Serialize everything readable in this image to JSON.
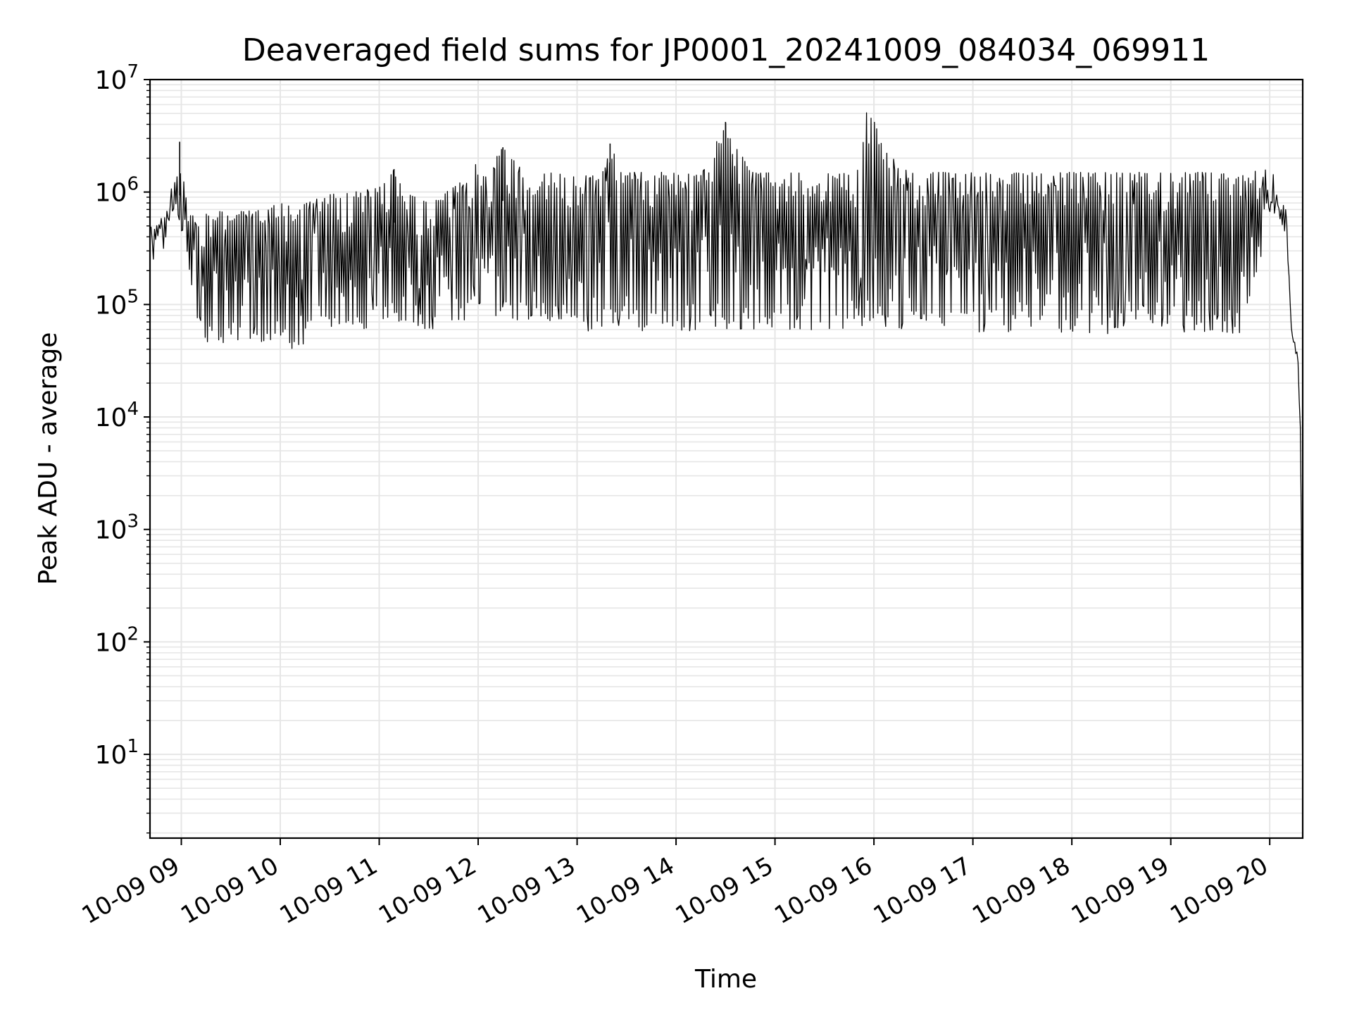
{
  "chart_data": {
    "type": "line",
    "title": "Deaveraged field sums for JP0001_20241009_084034_069911",
    "xlabel": "Time",
    "ylabel": "Peak ADU - average",
    "y_scale": "log",
    "ylim": [
      1.8,
      10000000
    ],
    "xlim": [
      "2024-10-09 08:41",
      "2024-10-09 20:20"
    ],
    "grid": true,
    "legend": "none",
    "line_color": "#000000",
    "grid_color": "#e6e6e6",
    "x_ticks": [
      "10-09 09",
      "10-09 10",
      "10-09 11",
      "10-09 12",
      "10-09 13",
      "10-09 14",
      "10-09 15",
      "10-09 16",
      "10-09 17",
      "10-09 18",
      "10-09 19",
      "10-09 20"
    ],
    "y_ticks": [
      {
        "value": 10,
        "base": "10",
        "exp": "1"
      },
      {
        "value": 100,
        "base": "10",
        "exp": "2"
      },
      {
        "value": 1000,
        "base": "10",
        "exp": "3"
      },
      {
        "value": 10000,
        "base": "10",
        "exp": "4"
      },
      {
        "value": 100000,
        "base": "10",
        "exp": "5"
      },
      {
        "value": 1000000,
        "base": "10",
        "exp": "6"
      },
      {
        "value": 10000000,
        "base": "10",
        "exp": "7"
      }
    ],
    "series": [
      {
        "x": [
          "2024-10-09 08:41",
          "2024-10-09 08:46",
          "2024-10-09 08:51",
          "2024-10-09 08:56",
          "2024-10-09 08:59",
          "2024-10-09 09:02",
          "2024-10-09 09:05",
          "2024-10-09 09:08",
          "2024-10-09 09:10",
          "2024-10-09 09:15",
          "2024-10-09 09:30",
          "2024-10-09 09:45",
          "2024-10-09 10:00",
          "2024-10-09 10:12",
          "2024-10-09 10:15",
          "2024-10-09 10:30",
          "2024-10-09 10:45",
          "2024-10-09 11:00",
          "2024-10-09 11:09",
          "2024-10-09 11:15",
          "2024-10-09 11:30",
          "2024-10-09 11:45",
          "2024-10-09 11:52",
          "2024-10-09 12:00",
          "2024-10-09 12:05",
          "2024-10-09 12:15",
          "2024-10-09 12:30",
          "2024-10-09 12:45",
          "2024-10-09 13:00",
          "2024-10-09 13:15",
          "2024-10-09 13:20",
          "2024-10-09 13:30",
          "2024-10-09 13:45",
          "2024-10-09 13:55",
          "2024-10-09 14:00",
          "2024-10-09 14:15",
          "2024-10-09 14:30",
          "2024-10-09 14:45",
          "2024-10-09 15:00",
          "2024-10-09 15:15",
          "2024-10-09 15:30",
          "2024-10-09 15:45",
          "2024-10-09 15:52",
          "2024-10-09 15:55",
          "2024-10-09 16:00",
          "2024-10-09 16:15",
          "2024-10-09 16:30",
          "2024-10-09 16:45",
          "2024-10-09 17:00",
          "2024-10-09 17:15",
          "2024-10-09 17:30",
          "2024-10-09 17:45",
          "2024-10-09 18:00",
          "2024-10-09 18:15",
          "2024-10-09 18:30",
          "2024-10-09 18:45",
          "2024-10-09 19:00",
          "2024-10-09 19:15",
          "2024-10-09 19:30",
          "2024-10-09 19:45",
          "2024-10-09 20:00",
          "2024-10-09 20:05",
          "2024-10-09 20:10",
          "2024-10-09 20:13",
          "2024-10-09 20:15",
          "2024-10-09 20:17",
          "2024-10-09 20:19",
          "2024-10-09 20:20"
        ],
        "upper": [
          600000,
          500000,
          800000,
          1300000,
          2800000,
          1200000,
          700000,
          650000,
          600000,
          650000,
          700000,
          700000,
          800000,
          700000,
          800000,
          950000,
          1000000,
          1100000,
          1600000,
          1000000,
          800000,
          1100000,
          1300000,
          1900000,
          1500000,
          2500000,
          1400000,
          1500000,
          1400000,
          1400000,
          2700000,
          1500000,
          1500000,
          1500000,
          1500000,
          1400000,
          4200000,
          1500000,
          1500000,
          1500000,
          1500000,
          1500000,
          1700000,
          5600000,
          4300000,
          1600000,
          1500000,
          1500000,
          1500000,
          1500000,
          1500000,
          1500000,
          1500000,
          1500000,
          1500000,
          1500000,
          1500000,
          1500000,
          1500000,
          1400000,
          1800000,
          1100000,
          800000,
          100000,
          55000,
          40000,
          5000,
          3
        ],
        "lower": [
          350000,
          400000,
          500000,
          700000,
          500000,
          350000,
          200000,
          100000,
          60000,
          45000,
          40000,
          45000,
          40000,
          35000,
          50000,
          60000,
          55000,
          70000,
          80000,
          60000,
          55000,
          60000,
          70000,
          80000,
          75000,
          70000,
          65000,
          70000,
          55000,
          60000,
          60000,
          60000,
          55000,
          60000,
          55000,
          60000,
          55000,
          55000,
          55000,
          50000,
          55000,
          55000,
          60000,
          60000,
          55000,
          55000,
          55000,
          55000,
          55000,
          55000,
          60000,
          55000,
          55000,
          55000,
          55000,
          55000,
          55000,
          55000,
          55000,
          55000,
          500000,
          700000,
          600000,
          40000,
          35000,
          30000,
          5000,
          3
        ]
      }
    ]
  }
}
